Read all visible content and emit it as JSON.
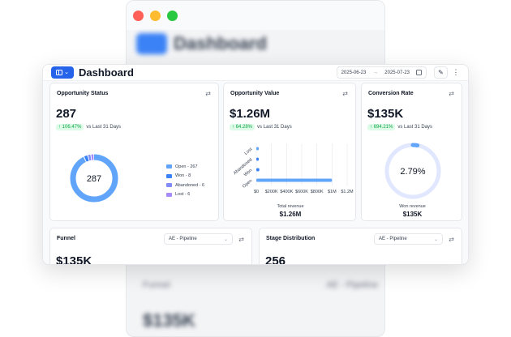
{
  "header": {
    "title": "Dashboard",
    "date_start": "2025-06-23",
    "date_end": "2025-07-23",
    "arrow": "→"
  },
  "background": {
    "title": "Dashboard",
    "funnel_label": "Funnel",
    "pipeline_label": "AE - Pipeline",
    "big_value": "$135K"
  },
  "cards": {
    "status": {
      "title": "Opportunity Status",
      "value": "287",
      "delta": "↑ 106.47%",
      "compare": "vs Last 31 Days",
      "donut_center": "287",
      "legend": [
        {
          "label": "Open - 267",
          "color": "#60a5fa",
          "value": 267
        },
        {
          "label": "Won - 8",
          "color": "#3b82f6",
          "value": 8
        },
        {
          "label": "Abandoned - 6",
          "color": "#818cf8",
          "value": 6
        },
        {
          "label": "Lost - 6",
          "color": "#a78bfa",
          "value": 6
        }
      ]
    },
    "value": {
      "title": "Opportunity Value",
      "value": "$1.26M",
      "delta": "↑ 64.28%",
      "compare": "vs Last 31 Days",
      "total_label": "Total revenue",
      "total_value": "$1.26M"
    },
    "conversion": {
      "title": "Conversion Rate",
      "value": "$135K",
      "delta": "↑ 694.21%",
      "compare": "vs Last 31 Days",
      "gauge_center": "2.79%",
      "gauge_fraction": 0.0279,
      "won_label": "Won revenue",
      "won_value": "$135K"
    },
    "funnel": {
      "title": "Funnel",
      "select": "AE - Pipeline",
      "value": "$135K"
    },
    "stage": {
      "title": "Stage Distribution",
      "select": "AE - Pipeline",
      "value": "256"
    }
  },
  "chart_data": [
    {
      "type": "pie",
      "categories": [
        "Open",
        "Won",
        "Abandoned",
        "Lost"
      ],
      "values": [
        267,
        8,
        6,
        6
      ]
    },
    {
      "type": "bar",
      "orientation": "horizontal",
      "categories": [
        "Lost",
        "Abandoned",
        "Won",
        "Open"
      ],
      "values": [
        0.02,
        0.02,
        0.04,
        1.0
      ],
      "xticks": [
        "$0",
        "$200K",
        "$400K",
        "$600K",
        "$800K",
        "$1M",
        "$1.2M"
      ],
      "xlim": [
        0,
        1.2
      ],
      "grid": true,
      "colors": [
        "#60a5fa",
        "#3b82f6",
        "#3b82f6",
        "#60a5fa"
      ]
    }
  ]
}
